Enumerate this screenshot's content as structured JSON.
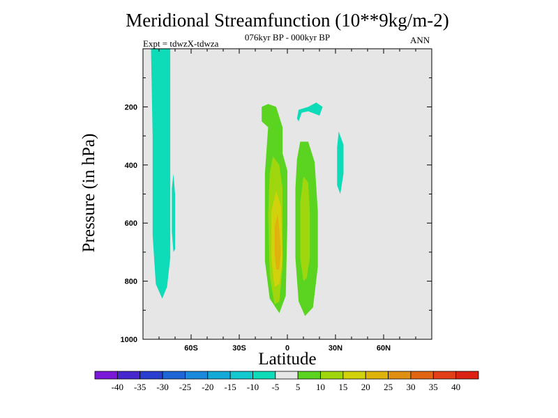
{
  "chart_data": {
    "type": "contour",
    "title": "Meridional Streamfunction (10**9kg/m-2)",
    "subtitle": "076kyr BP - 000kyr BP",
    "left_label": "Expt = tdwzX-tdwza",
    "right_label": "ANN",
    "xlabel": "Latitude",
    "ylabel": "Pressure (in hPa)",
    "xlim": [
      -90,
      90
    ],
    "ylim": [
      1000,
      0
    ],
    "x_ticks": [
      {
        "value": -60,
        "label": "60S"
      },
      {
        "value": -30,
        "label": "30S"
      },
      {
        "value": 0,
        "label": "0"
      },
      {
        "value": 30,
        "label": "30N"
      },
      {
        "value": 60,
        "label": "60N"
      }
    ],
    "y_ticks": [
      {
        "value": 200,
        "label": "200"
      },
      {
        "value": 400,
        "label": "400"
      },
      {
        "value": 600,
        "label": "600"
      },
      {
        "value": 800,
        "label": "800"
      },
      {
        "value": 1000,
        "label": "1000"
      }
    ],
    "colorbar": {
      "levels": [
        -40,
        -35,
        -30,
        -25,
        -20,
        -15,
        -10,
        -5,
        5,
        10,
        15,
        20,
        25,
        30,
        35,
        40
      ],
      "colors": [
        "#7b17d8",
        "#4727cd",
        "#2a3fd0",
        "#1e66d6",
        "#1b89dc",
        "#13a9d8",
        "#14c8d0",
        "#0edbb8",
        "#e6e6e6",
        "#5ad321",
        "#9fd60d",
        "#d2d20c",
        "#e0b30c",
        "#e08f10",
        "#e26514",
        "#e23e18",
        "#dc2212"
      ]
    },
    "regions": [
      {
        "level": -10,
        "points": [
          [
            -85,
            0
          ],
          [
            -73,
            0
          ],
          [
            -73,
            720
          ],
          [
            -75,
            820
          ],
          [
            -78,
            860
          ],
          [
            -82,
            810
          ],
          [
            -84,
            640
          ],
          [
            -84,
            300
          ]
        ]
      },
      {
        "level": -10,
        "points": [
          [
            -71,
            430
          ],
          [
            -70,
            500
          ],
          [
            -70,
            690
          ],
          [
            -71,
            700
          ],
          [
            -72,
            630
          ],
          [
            -72,
            480
          ]
        ]
      },
      {
        "level": -10,
        "points": [
          [
            6,
            240
          ],
          [
            7,
            210
          ],
          [
            13,
            200
          ],
          [
            18,
            185
          ],
          [
            22,
            200
          ],
          [
            20,
            230
          ],
          [
            13,
            215
          ],
          [
            9,
            220
          ],
          [
            7,
            250
          ]
        ]
      },
      {
        "level": -10,
        "points": [
          [
            32,
            285
          ],
          [
            35,
            330
          ],
          [
            35,
            430
          ],
          [
            33,
            500
          ],
          [
            31,
            470
          ],
          [
            31,
            340
          ]
        ]
      },
      {
        "level": 5,
        "points": [
          [
            -18,
            160
          ],
          [
            -14,
            145
          ],
          [
            -9,
            150
          ],
          [
            -6,
            190
          ],
          [
            -3,
            175
          ],
          [
            -1,
            205
          ],
          [
            -1,
            275
          ],
          [
            2,
            340
          ],
          [
            3,
            420
          ],
          [
            5,
            330
          ],
          [
            8,
            300
          ],
          [
            13,
            300
          ],
          [
            19,
            370
          ],
          [
            22,
            540
          ],
          [
            22,
            760
          ],
          [
            19,
            905
          ],
          [
            12,
            950
          ],
          [
            6,
            940
          ],
          [
            2,
            900
          ],
          [
            -2,
            960
          ],
          [
            -7,
            960
          ],
          [
            -13,
            920
          ],
          [
            -16,
            760
          ],
          [
            -16,
            470
          ],
          [
            -14,
            260
          ],
          [
            -19,
            240
          ],
          [
            -19,
            190
          ]
        ]
      },
      {
        "level": 10,
        "points": [
          [
            -16,
            200
          ],
          [
            -12,
            190
          ],
          [
            -7,
            200
          ],
          [
            -3,
            270
          ],
          [
            -3,
            360
          ],
          [
            0,
            420
          ],
          [
            0,
            600
          ],
          [
            -1,
            850
          ],
          [
            -5,
            910
          ],
          [
            -11,
            860
          ],
          [
            -14,
            730
          ],
          [
            -14,
            430
          ],
          [
            -12,
            270
          ],
          [
            -16,
            250
          ]
        ]
      },
      {
        "level": 10,
        "points": [
          [
            8,
            320
          ],
          [
            13,
            320
          ],
          [
            17,
            390
          ],
          [
            19,
            560
          ],
          [
            19,
            750
          ],
          [
            16,
            890
          ],
          [
            11,
            920
          ],
          [
            7,
            870
          ],
          [
            5,
            720
          ],
          [
            5,
            480
          ],
          [
            6,
            380
          ]
        ]
      },
      {
        "level": 15,
        "points": [
          [
            -9,
            370
          ],
          [
            -5,
            400
          ],
          [
            -3,
            480
          ],
          [
            -3,
            750
          ],
          [
            -5,
            870
          ],
          [
            -8,
            880
          ],
          [
            -11,
            780
          ],
          [
            -12,
            570
          ],
          [
            -11,
            430
          ]
        ]
      },
      {
        "level": 15,
        "points": [
          [
            10,
            440
          ],
          [
            13,
            460
          ],
          [
            14,
            560
          ],
          [
            14,
            720
          ],
          [
            12,
            790
          ],
          [
            10,
            800
          ],
          [
            8,
            720
          ],
          [
            8,
            530
          ]
        ]
      },
      {
        "level": 20,
        "points": [
          [
            -7,
            490
          ],
          [
            -4,
            540
          ],
          [
            -3,
            720
          ],
          [
            -5,
            810
          ],
          [
            -8,
            820
          ],
          [
            -10,
            720
          ],
          [
            -10,
            560
          ]
        ]
      },
      {
        "level": 25,
        "points": [
          [
            -6,
            570
          ],
          [
            -5,
            620
          ],
          [
            -4,
            700
          ],
          [
            -5,
            760
          ],
          [
            -7,
            760
          ],
          [
            -8,
            700
          ],
          [
            -8,
            610
          ]
        ]
      }
    ]
  }
}
